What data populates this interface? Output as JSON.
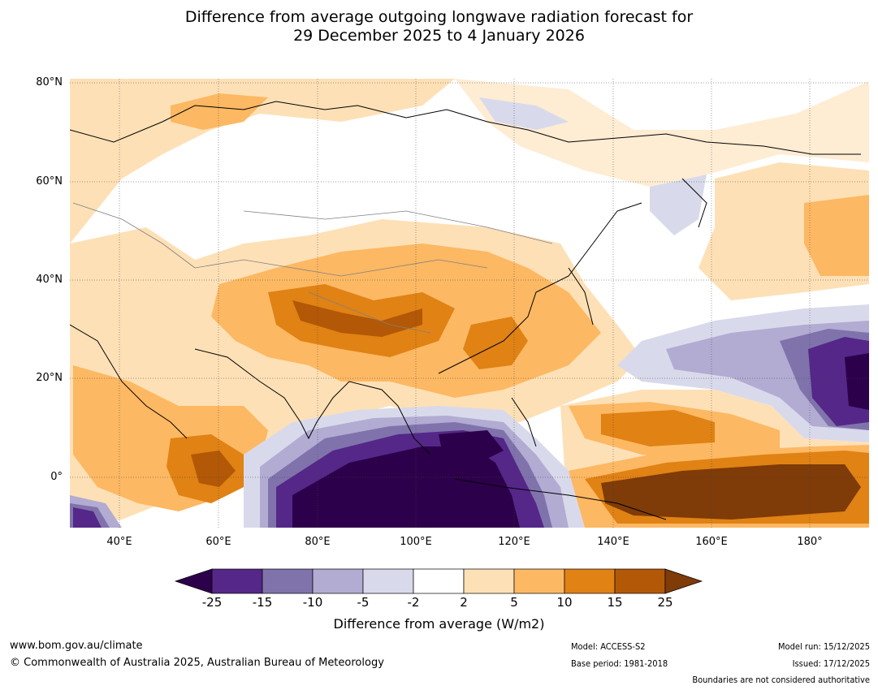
{
  "title": {
    "line1": "Difference from average outgoing longwave radiation forecast for",
    "line2": "29 December 2025 to 4 January 2026"
  },
  "map": {
    "lat_labels": [
      "80°N",
      "60°N",
      "40°N",
      "20°N",
      "0°"
    ],
    "lon_labels": [
      "40°E",
      "60°E",
      "80°E",
      "100°E",
      "120°E",
      "140°E",
      "160°E",
      "180°"
    ]
  },
  "colorbar": {
    "tick_labels": [
      "-25",
      "-15",
      "-10",
      "-5",
      "-2",
      "2",
      "5",
      "10",
      "15",
      "25"
    ],
    "colors": [
      "#2d004b",
      "#542788",
      "#8073ac",
      "#b2abd2",
      "#d8daeb",
      "#ffffff",
      "#fee0b6",
      "#fdb863",
      "#e08214",
      "#b35806",
      "#7f3b08"
    ],
    "title": "Difference from average (W/m2)"
  },
  "footer": {
    "website": "www.bom.gov.au/climate",
    "copyright": "© Commonwealth of Australia 2025, Australian Bureau of Meteorology",
    "model": "Model: ACCESS-S2",
    "base_period": "Base period: 1981-2018",
    "model_run": "Model run: 15/12/2025",
    "issued": "Issued: 17/12/2025",
    "disclaimer": "Boundaries are not considered authoritative"
  }
}
